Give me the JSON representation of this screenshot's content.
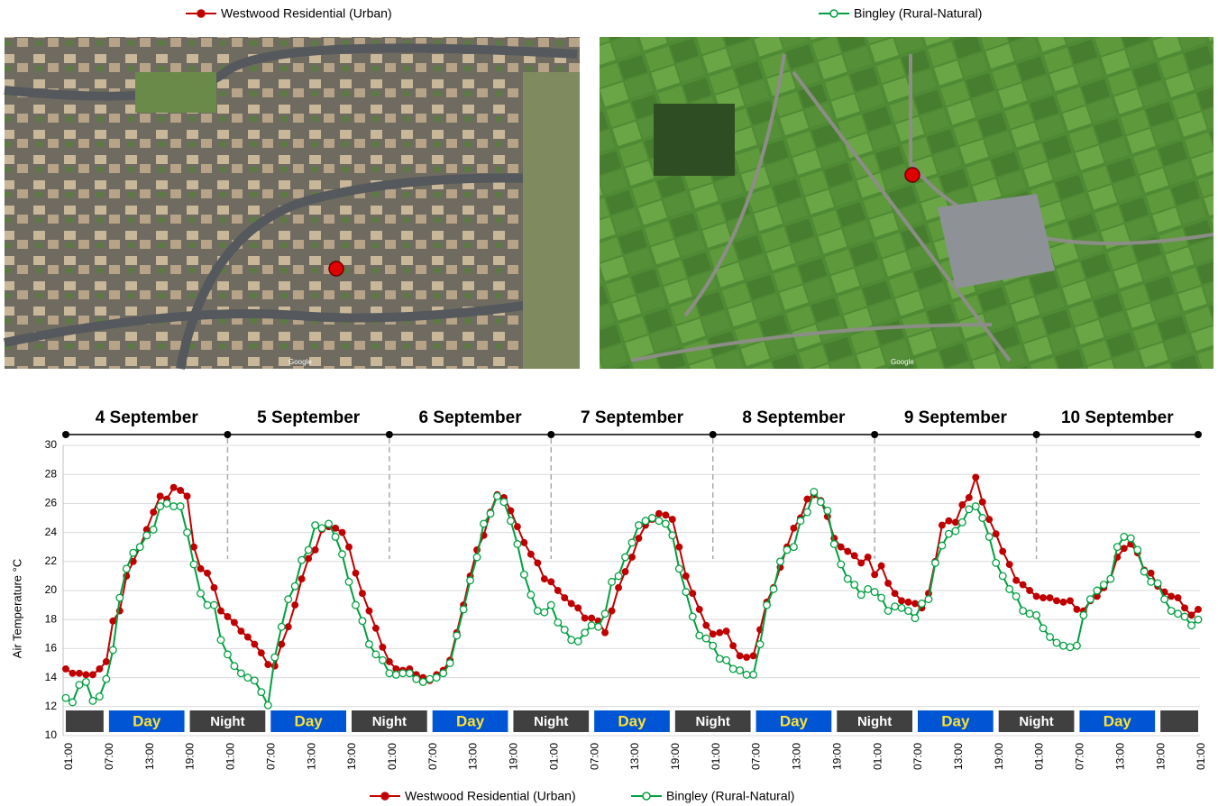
{
  "chart_data": {
    "type": "line",
    "y_label": "Air Temperature °C",
    "ylim": [
      10,
      30
    ],
    "yticks": [
      10,
      12,
      14,
      16,
      18,
      20,
      22,
      24,
      26,
      28,
      30
    ],
    "grid": true,
    "days": [
      "4 September",
      "5 September",
      "6 September",
      "7 September",
      "8 September",
      "9 September",
      "10 September"
    ],
    "periods": [
      {
        "start": 0,
        "end": 6
      },
      {
        "label": "Day",
        "start": 6,
        "end": 18
      },
      {
        "label": "Night",
        "start": 18,
        "end": 30
      },
      {
        "label": "Day",
        "start": 30,
        "end": 42
      },
      {
        "label": "Night",
        "start": 42,
        "end": 54
      },
      {
        "label": "Day",
        "start": 54,
        "end": 66
      },
      {
        "label": "Night",
        "start": 66,
        "end": 78
      },
      {
        "label": "Day",
        "start": 78,
        "end": 90
      },
      {
        "label": "Night",
        "start": 90,
        "end": 102
      },
      {
        "label": "Day",
        "start": 102,
        "end": 114
      },
      {
        "label": "Night",
        "start": 114,
        "end": 126
      },
      {
        "label": "Day",
        "start": 126,
        "end": 138
      },
      {
        "label": "Night",
        "start": 138,
        "end": 150
      },
      {
        "label": "Day",
        "start": 150,
        "end": 162
      },
      {
        "start": 162,
        "end": 168
      }
    ],
    "maps": [
      {
        "caption": "Google"
      },
      {
        "caption": "Google"
      }
    ],
    "categories": [
      "01:00",
      null,
      null,
      null,
      null,
      null,
      "07:00",
      null,
      null,
      null,
      null,
      null,
      "13:00",
      null,
      null,
      null,
      null,
      null,
      "19:00",
      null,
      null,
      null,
      null,
      null,
      "01:00",
      null,
      null,
      null,
      null,
      null,
      "07:00",
      null,
      null,
      null,
      null,
      null,
      "13:00",
      null,
      null,
      null,
      null,
      null,
      "19:00",
      null,
      null,
      null,
      null,
      null,
      "01:00",
      null,
      null,
      null,
      null,
      null,
      "07:00",
      null,
      null,
      null,
      null,
      null,
      "13:00",
      null,
      null,
      null,
      null,
      null,
      "19:00",
      null,
      null,
      null,
      null,
      null,
      "01:00",
      null,
      null,
      null,
      null,
      null,
      "07:00",
      null,
      null,
      null,
      null,
      null,
      "13:00",
      null,
      null,
      null,
      null,
      null,
      "19:00",
      null,
      null,
      null,
      null,
      null,
      "01:00",
      null,
      null,
      null,
      null,
      null,
      "07:00",
      null,
      null,
      null,
      null,
      null,
      "13:00",
      null,
      null,
      null,
      null,
      null,
      "19:00",
      null,
      null,
      null,
      null,
      null,
      "01:00",
      null,
      null,
      null,
      null,
      null,
      "07:00",
      null,
      null,
      null,
      null,
      null,
      "13:00",
      null,
      null,
      null,
      null,
      null,
      "19:00",
      null,
      null,
      null,
      null,
      null,
      "01:00",
      null,
      null,
      null,
      null,
      null,
      "07:00",
      null,
      null,
      null,
      null,
      null,
      "13:00",
      null,
      null,
      null,
      null,
      null,
      "19:00",
      null,
      null,
      null,
      null,
      null,
      "01:00"
    ],
    "series": [
      {
        "name": "Westwood Residential (Urban)",
        "color": "#c00000",
        "values": [
          14.6,
          14.3,
          14.3,
          14.2,
          14.2,
          14.6,
          15.1,
          17.9,
          18.6,
          21.0,
          22.0,
          23.0,
          24.2,
          25.4,
          26.5,
          26.3,
          27.1,
          26.9,
          26.5,
          23.0,
          21.5,
          21.2,
          20.2,
          18.6,
          18.2,
          17.8,
          17.2,
          16.8,
          16.3,
          15.7,
          14.9,
          14.8,
          16.3,
          17.5,
          19.0,
          20.8,
          22.2,
          22.8,
          24.2,
          24.4,
          24.3,
          24.0,
          23.0,
          21.2,
          19.8,
          18.6,
          17.4,
          16.1,
          15.1,
          14.6,
          14.5,
          14.6,
          14.2,
          14.0,
          13.8,
          14.2,
          14.5,
          15.2,
          17.1,
          19.0,
          21.0,
          22.8,
          23.8,
          25.4,
          26.6,
          26.4,
          25.5,
          24.4,
          23.3,
          22.5,
          21.9,
          20.8,
          20.6,
          20.0,
          19.5,
          19.1,
          18.8,
          18.1,
          18.1,
          17.9,
          17.1,
          18.6,
          20.2,
          21.3,
          22.3,
          23.6,
          24.5,
          24.9,
          25.3,
          25.2,
          24.9,
          23.0,
          21.0,
          19.8,
          18.7,
          17.6,
          17.0,
          17.1,
          17.2,
          16.2,
          15.5,
          15.4,
          15.5,
          17.3,
          19.2,
          20.2,
          21.6,
          23.0,
          24.3,
          25.0,
          26.3,
          26.6,
          26.2,
          25.1,
          23.6,
          23.0,
          22.7,
          22.4,
          21.9,
          22.3,
          21.1,
          21.7,
          20.5,
          19.8,
          19.3,
          19.2,
          19.1,
          18.8,
          19.8,
          22.0,
          24.5,
          24.8,
          24.7,
          25.9,
          26.4,
          27.8,
          26.1,
          24.9,
          23.9,
          22.7,
          21.8,
          20.7,
          20.4,
          20.0,
          19.6,
          19.5,
          19.5,
          19.3,
          19.2,
          19.3,
          18.7,
          18.6,
          19.3,
          19.6,
          20.2,
          20.8,
          22.3,
          22.9,
          23.2,
          22.6,
          21.4,
          21.2,
          20.3,
          19.9,
          19.6,
          19.5,
          18.8,
          18.3,
          18.7
        ]
      },
      {
        "name": "Bingley (Rural-Natural)",
        "color": "#00a040",
        "values": [
          12.6,
          12.3,
          13.5,
          13.7,
          12.4,
          12.7,
          13.9,
          15.9,
          19.5,
          21.5,
          22.6,
          23.0,
          23.8,
          24.2,
          25.8,
          26.0,
          25.8,
          25.8,
          24.0,
          21.8,
          19.8,
          19.0,
          19.0,
          16.6,
          15.6,
          14.8,
          14.3,
          14.0,
          13.8,
          13.0,
          12.1,
          15.4,
          17.5,
          19.4,
          20.3,
          22.1,
          22.8,
          24.5,
          24.3,
          24.6,
          23.7,
          22.5,
          20.6,
          19.0,
          17.9,
          16.3,
          15.6,
          15.2,
          14.3,
          14.2,
          14.3,
          14.3,
          13.9,
          13.7,
          13.9,
          14.0,
          14.3,
          15.0,
          16.9,
          18.7,
          20.7,
          22.3,
          24.6,
          25.3,
          26.5,
          26.1,
          24.8,
          23.2,
          21.1,
          19.7,
          18.6,
          18.5,
          19.0,
          17.8,
          17.3,
          16.6,
          16.5,
          17.1,
          17.6,
          17.5,
          18.4,
          20.6,
          21.0,
          22.3,
          23.3,
          24.5,
          24.8,
          25.0,
          24.8,
          24.6,
          23.8,
          21.5,
          19.9,
          18.2,
          16.9,
          16.7,
          16.2,
          15.3,
          15.2,
          14.6,
          14.5,
          14.2,
          14.2,
          16.3,
          19.0,
          20.1,
          22.0,
          22.8,
          23.0,
          24.8,
          25.4,
          26.8,
          26.1,
          25.5,
          23.2,
          21.8,
          20.8,
          20.4,
          19.7,
          20.1,
          19.9,
          19.5,
          18.6,
          18.9,
          18.8,
          18.6,
          18.1,
          19.1,
          19.4,
          21.9,
          23.1,
          23.9,
          24.1,
          24.7,
          25.6,
          25.8,
          25.0,
          23.7,
          21.9,
          21.0,
          20.1,
          19.6,
          18.6,
          18.4,
          18.3,
          17.4,
          16.8,
          16.4,
          16.2,
          16.1,
          16.2,
          18.3,
          19.4,
          20.0,
          20.4,
          20.8,
          23.0,
          23.7,
          23.6,
          22.8,
          21.3,
          20.6,
          20.5,
          19.4,
          18.6,
          18.4,
          18.2,
          17.6,
          18.0
        ]
      }
    ]
  }
}
